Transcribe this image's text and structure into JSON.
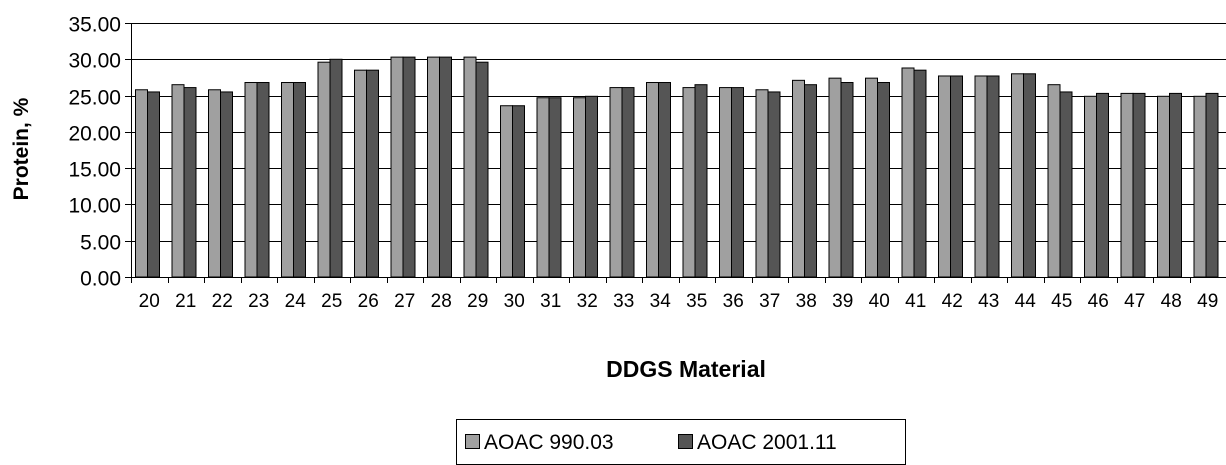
{
  "chart_data": {
    "type": "bar",
    "title": "",
    "xlabel": "DDGS Material",
    "ylabel": "Protein, %",
    "ylim": [
      0,
      35
    ],
    "y_ticks": [
      "0.00",
      "5.00",
      "10.00",
      "15.00",
      "20.00",
      "25.00",
      "30.00",
      "35.00"
    ],
    "grid": true,
    "legend_position": "bottom-center",
    "categories": [
      "20",
      "21",
      "22",
      "23",
      "24",
      "25",
      "26",
      "27",
      "28",
      "29",
      "30",
      "31",
      "32",
      "33",
      "34",
      "35",
      "36",
      "37",
      "38",
      "39",
      "40",
      "41",
      "42",
      "43",
      "44",
      "45",
      "46",
      "47",
      "48",
      "49"
    ],
    "series": [
      {
        "name": "AOAC 990.03",
        "color": "#a0a0a0",
        "values": [
          25.8,
          26.5,
          25.8,
          26.8,
          26.8,
          29.6,
          28.5,
          30.3,
          30.3,
          30.3,
          23.6,
          24.7,
          24.7,
          26.1,
          26.8,
          26.1,
          26.1,
          25.8,
          27.1,
          27.4,
          27.4,
          28.8,
          27.7,
          27.7,
          28.0,
          26.5,
          24.9,
          25.3,
          24.9,
          24.9
        ]
      },
      {
        "name": "AOAC 2001.11",
        "color": "#555555",
        "values": [
          25.5,
          26.1,
          25.5,
          26.8,
          26.8,
          30.0,
          28.5,
          30.3,
          30.3,
          29.6,
          23.6,
          24.7,
          24.9,
          26.1,
          26.8,
          26.5,
          26.1,
          25.5,
          26.5,
          26.8,
          26.8,
          28.5,
          27.7,
          27.7,
          28.0,
          25.5,
          25.3,
          25.3,
          25.3,
          25.3
        ]
      }
    ]
  }
}
